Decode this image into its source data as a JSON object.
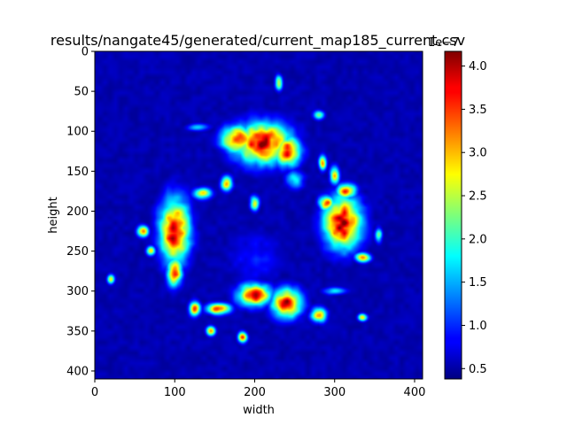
{
  "chart_data": {
    "type": "heatmap",
    "title": "results/nangate45/generated/current_map185_current.csv",
    "xlabel": "width",
    "ylabel": "height",
    "xlim": [
      0,
      410
    ],
    "ylim": [
      410,
      0
    ],
    "x_ticks": [
      0,
      100,
      200,
      300,
      400
    ],
    "y_ticks": [
      0,
      50,
      100,
      150,
      200,
      250,
      300,
      350,
      400
    ],
    "colormap": "jet",
    "colorbar": {
      "range": [
        0.38,
        4.17
      ],
      "ticks": [
        0.5,
        1.0,
        1.5,
        2.0,
        2.5,
        3.0,
        3.5,
        4.0
      ],
      "tick_labels": [
        "0.5",
        "1.0",
        "1.5",
        "2.0",
        "2.5",
        "3.0",
        "3.5",
        "4.0"
      ],
      "offset_label": "1e−7"
    },
    "hotspots": [
      {
        "x": 210,
        "y": 115,
        "sx": 30,
        "sy": 22,
        "v": 4.05
      },
      {
        "x": 180,
        "y": 110,
        "sx": 18,
        "sy": 14,
        "v": 3.9
      },
      {
        "x": 240,
        "y": 125,
        "sx": 15,
        "sy": 16,
        "v": 3.7
      },
      {
        "x": 100,
        "y": 225,
        "sx": 16,
        "sy": 35,
        "v": 4.0
      },
      {
        "x": 100,
        "y": 275,
        "sx": 8,
        "sy": 16,
        "v": 3.6
      },
      {
        "x": 310,
        "y": 215,
        "sx": 20,
        "sy": 28,
        "v": 4.05
      },
      {
        "x": 315,
        "y": 175,
        "sx": 10,
        "sy": 8,
        "v": 3.5
      },
      {
        "x": 200,
        "y": 305,
        "sx": 18,
        "sy": 12,
        "v": 3.8
      },
      {
        "x": 240,
        "y": 315,
        "sx": 16,
        "sy": 16,
        "v": 3.8
      },
      {
        "x": 155,
        "y": 322,
        "sx": 12,
        "sy": 6,
        "v": 3.6
      },
      {
        "x": 125,
        "y": 322,
        "sx": 6,
        "sy": 8,
        "v": 3.3
      },
      {
        "x": 280,
        "y": 330,
        "sx": 8,
        "sy": 8,
        "v": 3.2
      },
      {
        "x": 60,
        "y": 225,
        "sx": 6,
        "sy": 6,
        "v": 3.4
      },
      {
        "x": 70,
        "y": 250,
        "sx": 5,
        "sy": 5,
        "v": 3.0
      },
      {
        "x": 335,
        "y": 258,
        "sx": 8,
        "sy": 5,
        "v": 3.5
      },
      {
        "x": 285,
        "y": 140,
        "sx": 4,
        "sy": 8,
        "v": 3.1
      },
      {
        "x": 300,
        "y": 155,
        "sx": 5,
        "sy": 10,
        "v": 3.0
      },
      {
        "x": 165,
        "y": 165,
        "sx": 6,
        "sy": 8,
        "v": 3.2
      },
      {
        "x": 145,
        "y": 350,
        "sx": 5,
        "sy": 5,
        "v": 3.0
      },
      {
        "x": 185,
        "y": 358,
        "sx": 5,
        "sy": 6,
        "v": 3.3
      },
      {
        "x": 135,
        "y": 178,
        "sx": 10,
        "sy": 6,
        "v": 2.8
      },
      {
        "x": 200,
        "y": 190,
        "sx": 5,
        "sy": 8,
        "v": 2.6
      },
      {
        "x": 290,
        "y": 190,
        "sx": 8,
        "sy": 8,
        "v": 3.4
      },
      {
        "x": 230,
        "y": 40,
        "sx": 4,
        "sy": 8,
        "v": 2.6
      },
      {
        "x": 280,
        "y": 80,
        "sx": 6,
        "sy": 5,
        "v": 2.2
      },
      {
        "x": 20,
        "y": 285,
        "sx": 4,
        "sy": 5,
        "v": 2.6
      },
      {
        "x": 335,
        "y": 333,
        "sx": 5,
        "sy": 4,
        "v": 3.0
      },
      {
        "x": 355,
        "y": 230,
        "sx": 4,
        "sy": 8,
        "v": 2.2
      },
      {
        "x": 130,
        "y": 95,
        "sx": 12,
        "sy": 4,
        "v": 1.6
      },
      {
        "x": 300,
        "y": 300,
        "sx": 12,
        "sy": 4,
        "v": 1.8
      },
      {
        "x": 250,
        "y": 160,
        "sx": 10,
        "sy": 10,
        "v": 1.8
      },
      {
        "x": 200,
        "y": 260,
        "sx": 30,
        "sy": 30,
        "v": 0.9
      }
    ]
  }
}
